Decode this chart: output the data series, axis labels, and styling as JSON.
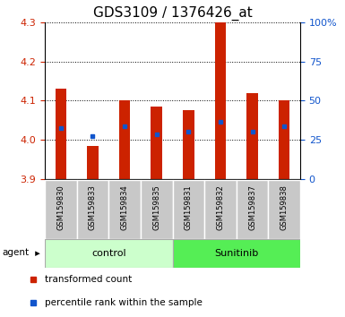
{
  "title": "GDS3109 / 1376426_at",
  "samples": [
    "GSM159830",
    "GSM159833",
    "GSM159834",
    "GSM159835",
    "GSM159831",
    "GSM159832",
    "GSM159837",
    "GSM159838"
  ],
  "bar_tops": [
    4.13,
    3.985,
    4.1,
    4.085,
    4.075,
    4.3,
    4.12,
    4.1
  ],
  "bar_bottom": 3.9,
  "blue_marks": [
    4.03,
    4.01,
    4.035,
    4.015,
    4.02,
    4.045,
    4.02,
    4.035
  ],
  "ylim_left": [
    3.9,
    4.3
  ],
  "ylim_right": [
    0,
    100
  ],
  "yticks_left": [
    3.9,
    4.0,
    4.1,
    4.2,
    4.3
  ],
  "yticks_right": [
    0,
    25,
    50,
    75,
    100
  ],
  "ytick_labels_right": [
    "0",
    "25",
    "50",
    "75",
    "100%"
  ],
  "bar_color": "#cc2200",
  "blue_color": "#1155cc",
  "control_color": "#ccffcc",
  "sunitinib_color": "#55ee55",
  "label_bg_color": "#c8c8c8",
  "group_labels": [
    "control",
    "Sunitinib"
  ],
  "legend_red_label": "transformed count",
  "legend_blue_label": "percentile rank within the sample",
  "agent_label": "agent",
  "grid_color": "#000000",
  "title_fontsize": 11,
  "tick_fontsize": 8,
  "bar_width": 0.35
}
